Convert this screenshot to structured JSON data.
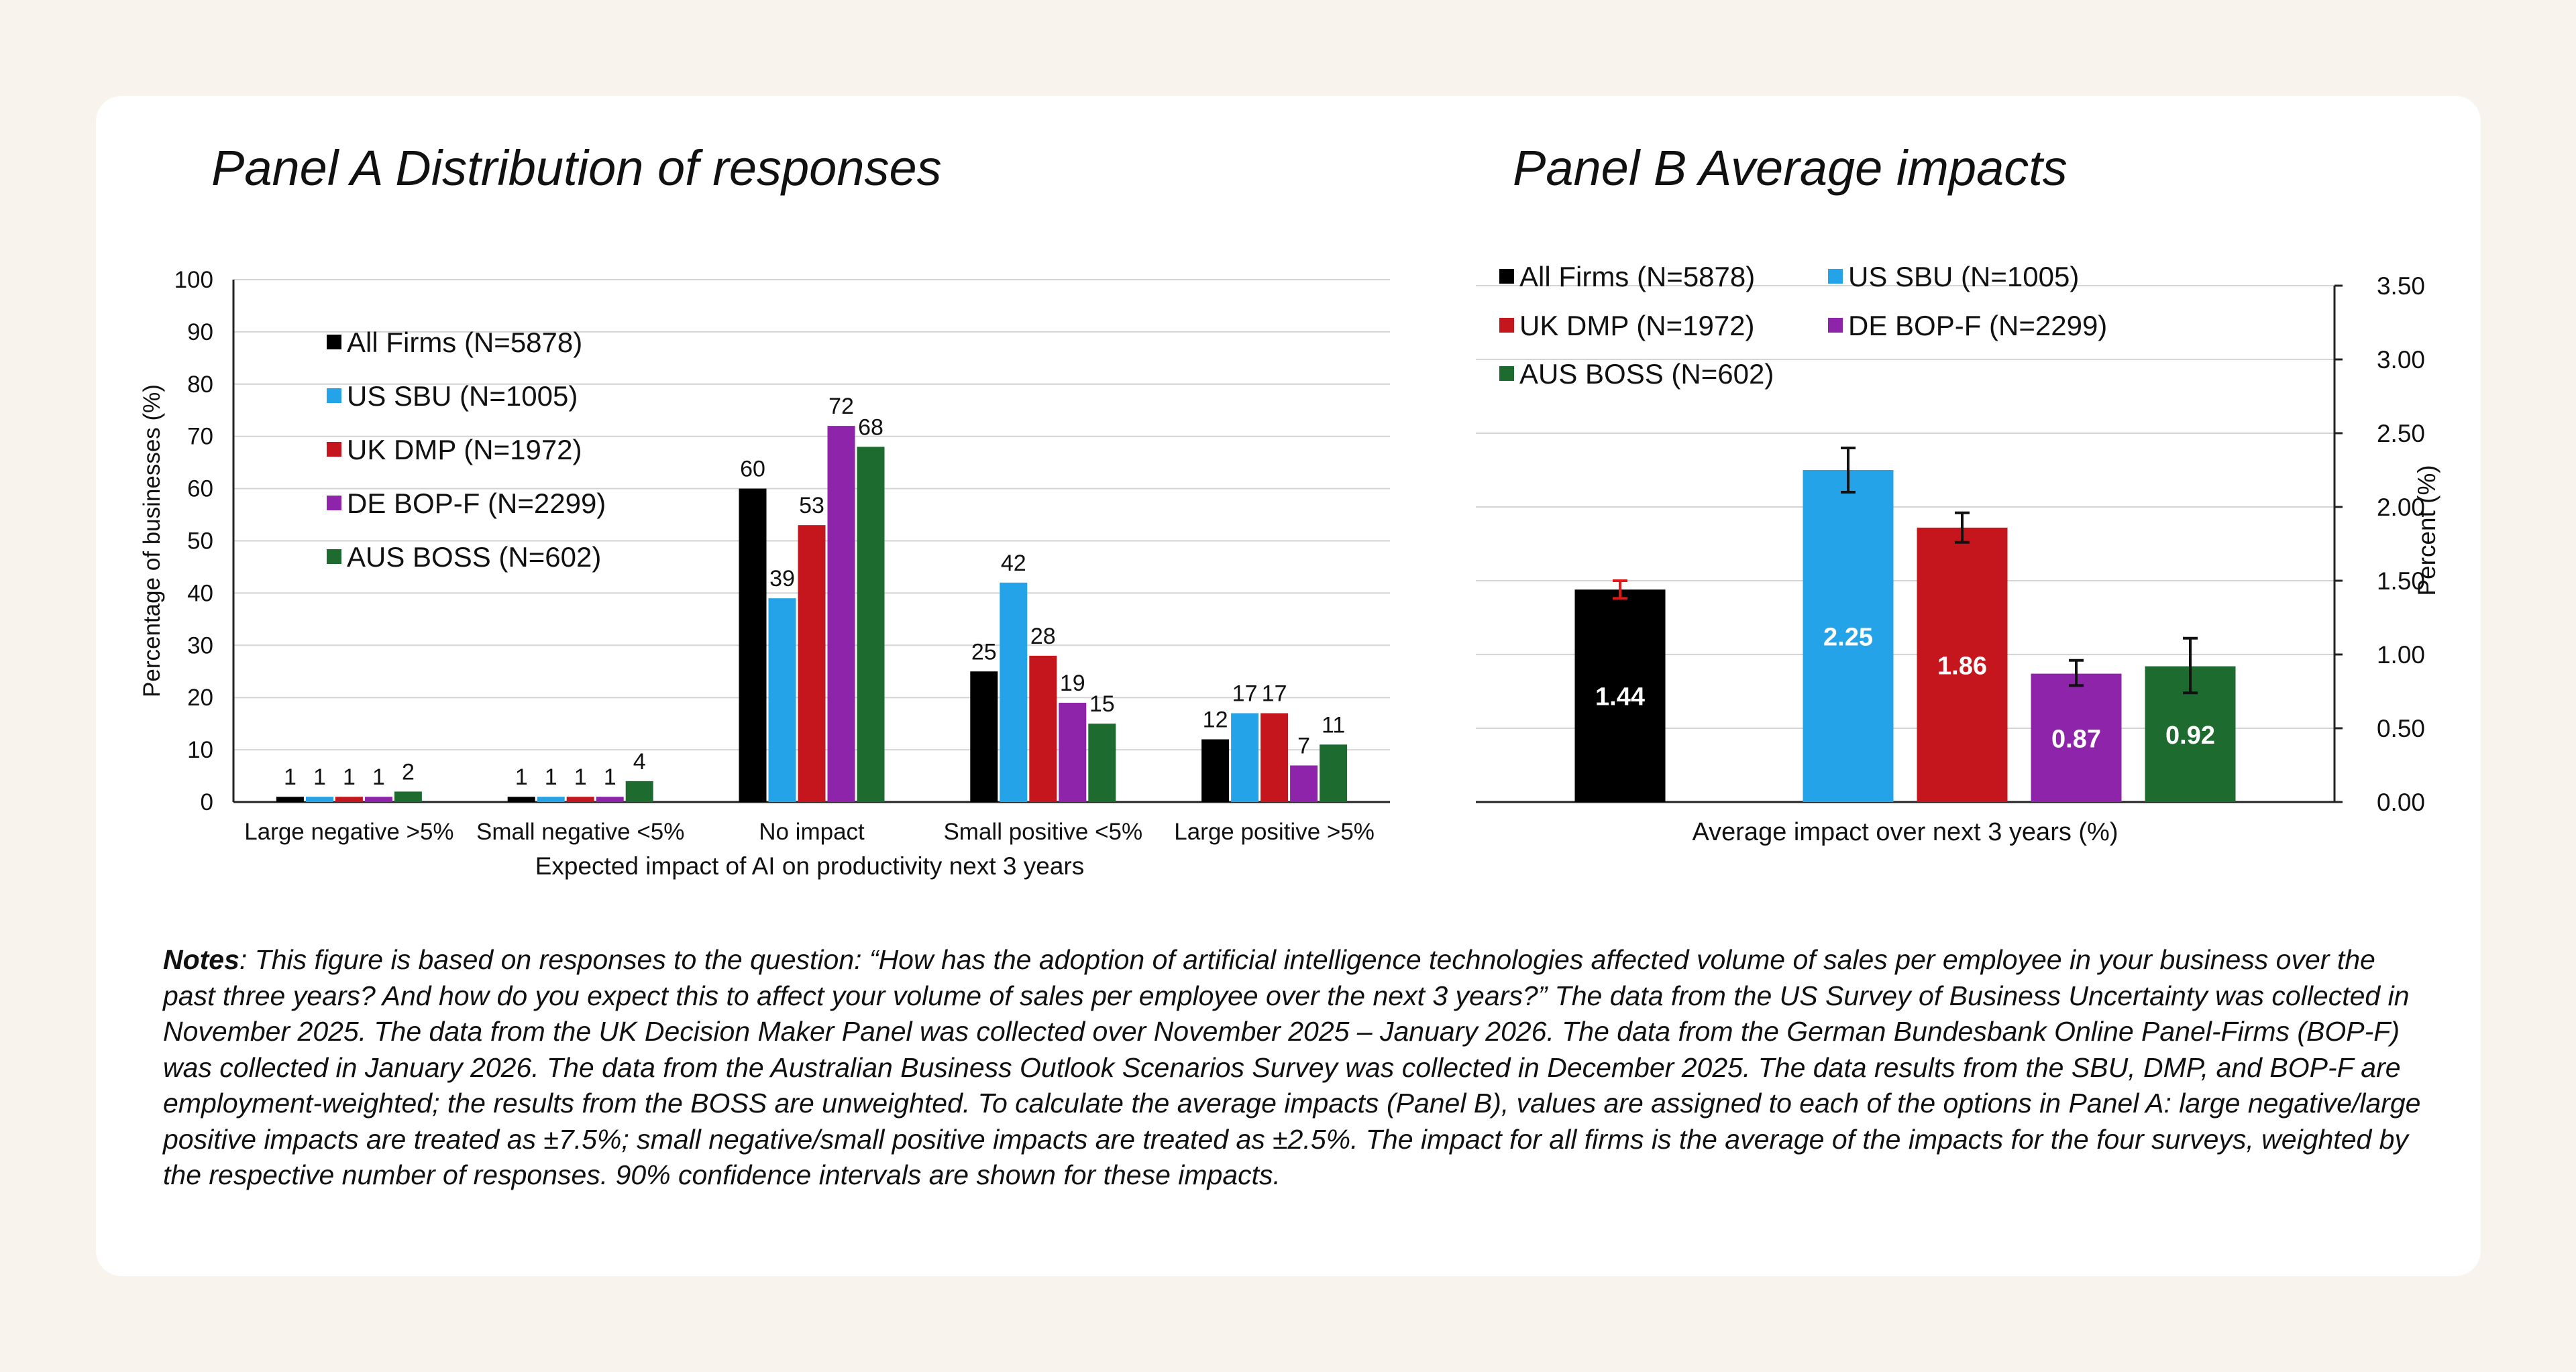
{
  "panel_a_title": "Panel A Distribution of responses",
  "panel_b_title": "Panel B Average impacts",
  "colors": {
    "all_firms": "#000000",
    "us_sbu": "#24a3e8",
    "uk_dmp": "#c4161c",
    "de_bopf": "#8e24aa",
    "aus_boss": "#1e6b30"
  },
  "chart_data": [
    {
      "type": "bar",
      "title": "Panel A Distribution of responses",
      "xlabel": "Expected impact of AI on productivity next 3 years",
      "ylabel": "Percentage of businesses (%)",
      "ylim": [
        0,
        100
      ],
      "yticks": [
        0,
        10,
        20,
        30,
        40,
        50,
        60,
        70,
        80,
        90,
        100
      ],
      "grid": true,
      "legend_position": "top-left",
      "categories": [
        "Large negative >5%",
        "Small negative <5%",
        "No impact",
        "Small positive <5%",
        "Large positive >5%"
      ],
      "series": [
        {
          "name": "All Firms (N=5878)",
          "key": "all_firms",
          "values": [
            1,
            1,
            60,
            25,
            12
          ]
        },
        {
          "name": "US SBU (N=1005)",
          "key": "us_sbu",
          "values": [
            1,
            1,
            39,
            42,
            17
          ]
        },
        {
          "name": "UK DMP (N=1972)",
          "key": "uk_dmp",
          "values": [
            1,
            1,
            53,
            28,
            17
          ]
        },
        {
          "name": "DE BOP-F (N=2299)",
          "key": "de_bopf",
          "values": [
            1,
            1,
            72,
            19,
            7
          ]
        },
        {
          "name": "AUS BOSS (N=602)",
          "key": "aus_boss",
          "values": [
            2,
            4,
            68,
            15,
            11
          ]
        }
      ],
      "data_labels": [
        [
          "1",
          "1",
          "1",
          "1",
          "2"
        ],
        [
          "1",
          "1",
          "1",
          "1",
          "4"
        ],
        [
          "60",
          "39",
          "53",
          "72",
          "68"
        ],
        [
          "25",
          "42",
          "28",
          "19",
          "15"
        ],
        [
          "12",
          "17",
          "17",
          "7",
          "11"
        ]
      ]
    },
    {
      "type": "bar",
      "title": "Panel B Average impacts",
      "xlabel": "Average impact over next 3 years (%)",
      "ylabel": "Percent (%)",
      "ylim": [
        0,
        3.5
      ],
      "yticks": [
        "0.00",
        "0.50",
        "1.00",
        "1.50",
        "2.00",
        "2.50",
        "3.00",
        "3.50"
      ],
      "grid": true,
      "y_axis_side": "right",
      "legend_position": "top",
      "series": [
        {
          "name": "All Firms (N=5878)",
          "key": "all_firms",
          "value": 1.44,
          "label": "1.44",
          "ci": [
            1.38,
            1.5
          ]
        },
        {
          "name": "US SBU (N=1005)",
          "key": "us_sbu",
          "value": 2.25,
          "label": "2.25",
          "ci": [
            2.1,
            2.4
          ]
        },
        {
          "name": "UK DMP (N=1972)",
          "key": "uk_dmp",
          "value": 1.86,
          "label": "1.86",
          "ci": [
            1.76,
            1.96
          ]
        },
        {
          "name": "DE BOP-F (N=2299)",
          "key": "de_bopf",
          "value": 0.87,
          "label": "0.87",
          "ci": [
            0.79,
            0.96
          ]
        },
        {
          "name": "AUS BOSS (N=602)",
          "key": "aus_boss",
          "value": 0.92,
          "label": "0.92",
          "ci": [
            0.74,
            1.11
          ]
        }
      ]
    }
  ],
  "notes": {
    "label": "Notes",
    "text": ": This figure is based on responses to the question: “How has the adoption of artificial intelligence technologies affected volume of sales per employee in your business over the past three years? And how do you expect this to affect your volume of sales per employee over the next 3 years?” The data from the US Survey of Business Uncertainty was collected in November 2025. The data from the UK Decision Maker Panel was collected over November 2025 – January 2026. The data from the German Bundesbank Online Panel-Firms (BOP-F) was collected in January 2026. The data from the Australian Business Outlook Scenarios Survey was collected in December 2025. The data results from the SBU, DMP, and BOP-F are employment-weighted; the results from the BOSS are unweighted. To calculate the average impacts (Panel B), values are assigned to each of the options in Panel A: large negative/large positive impacts are treated as ±7.5%; small negative/small positive impacts are treated as ±2.5%. The impact for all firms is the average of the impacts for the four surveys, weighted by the respective number of responses. 90% confidence intervals are shown for these impacts."
  }
}
